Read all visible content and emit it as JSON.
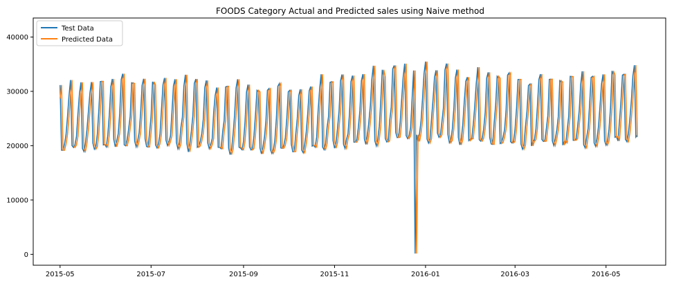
{
  "chart_data": {
    "type": "line",
    "title": "FOODS Category Actual and Predicted sales using Naive method",
    "xlabel": "",
    "ylabel": "",
    "x_ticks": [
      "2015-05",
      "2015-07",
      "2015-09",
      "2015-11",
      "2016-01",
      "2016-03",
      "2016-05"
    ],
    "y_ticks": [
      0,
      10000,
      20000,
      30000,
      40000
    ],
    "x_start": "2015-05-01",
    "x_end": "2016-05-22",
    "ylim": [
      -2000,
      43500
    ],
    "legend": "top-left",
    "grid": false,
    "series": [
      {
        "name": "Test Data",
        "color": "#1f77b4"
      },
      {
        "name": "Predicted Data",
        "color": "#ff7f0e"
      }
    ],
    "weekly_pattern": "approximate daily sales with a repeating weekly cycle",
    "test_data_values": [],
    "predicted_data_values": []
  }
}
